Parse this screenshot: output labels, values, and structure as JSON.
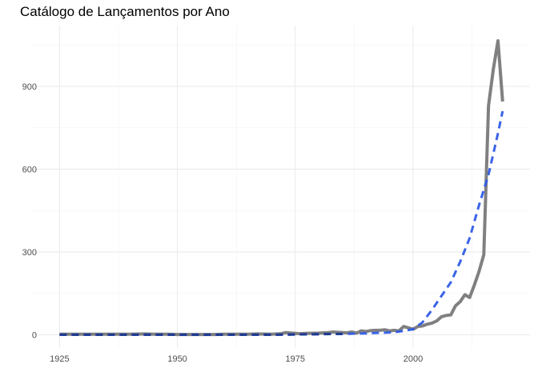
{
  "chart_data": {
    "type": "line",
    "title": "Catálogo de Lançamentos por Ano",
    "xlabel": "",
    "ylabel": "",
    "xlim": [
      1925,
      2020
    ],
    "ylim": [
      0,
      1070
    ],
    "x_ticks": [
      1925,
      1950,
      1975,
      2000
    ],
    "y_ticks": [
      0,
      300,
      600,
      900
    ],
    "grid": true,
    "colors": {
      "actual": "#808080",
      "trend": "#2f5ce6",
      "trend_overlap": "#1f3a8f"
    },
    "series": [
      {
        "style": "solid",
        "x": [
          1925,
          1930,
          1935,
          1940,
          1943,
          1945,
          1948,
          1950,
          1955,
          1958,
          1960,
          1962,
          1965,
          1967,
          1970,
          1972,
          1973,
          1975,
          1976,
          1977,
          1980,
          1982,
          1983,
          1985,
          1986,
          1987,
          1988,
          1989,
          1990,
          1991,
          1992,
          1993,
          1994,
          1995,
          1996,
          1997,
          1998,
          1999,
          2000,
          2001,
          2002,
          2003,
          2004,
          2005,
          2006,
          2007,
          2008,
          2009,
          2010,
          2011,
          2012,
          2013,
          2014,
          2015,
          2016,
          2017,
          2018,
          2019
        ],
        "y": [
          2,
          2,
          2,
          2,
          3,
          2,
          2,
          1,
          1,
          1,
          2,
          2,
          2,
          3,
          2,
          4,
          8,
          5,
          4,
          5,
          6,
          8,
          10,
          8,
          7,
          10,
          6,
          14,
          12,
          15,
          16,
          16,
          18,
          14,
          16,
          14,
          30,
          25,
          20,
          30,
          32,
          38,
          42,
          50,
          65,
          70,
          72,
          105,
          120,
          145,
          135,
          180,
          230,
          290,
          830,
          960,
          1065,
          845
        ]
      },
      {
        "style": "dashed",
        "x": [
          1925,
          1930,
          1935,
          1940,
          1945,
          1950,
          1955,
          1960,
          1965,
          1970,
          1975,
          1980,
          1985,
          1990,
          1993,
          1996,
          1998,
          2000,
          2002,
          2004,
          2006,
          2008,
          2010,
          2012,
          2014,
          2016,
          2018,
          2019
        ],
        "y": [
          0,
          0,
          0,
          0,
          0,
          0,
          0,
          0,
          0,
          0,
          1,
          2,
          3,
          5,
          7,
          9,
          14,
          20,
          45,
          90,
          140,
          190,
          265,
          350,
          470,
          580,
          730,
          810
        ]
      }
    ]
  }
}
